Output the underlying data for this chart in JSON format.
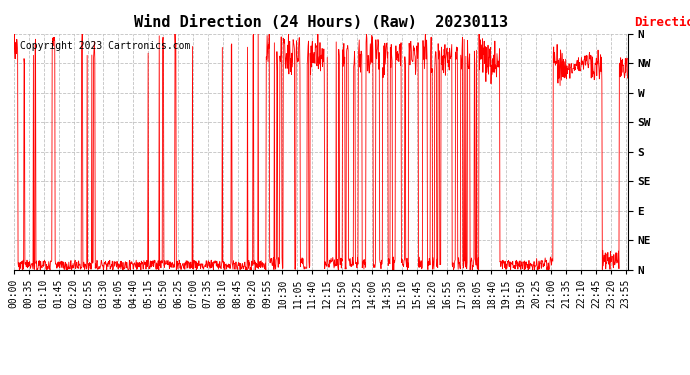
{
  "title": "Wind Direction (24 Hours) (Raw)  20230113",
  "copyright": "Copyright 2023 Cartronics.com",
  "legend_label": "Direction",
  "line_color": "red",
  "background_color": "white",
  "grid_color": "#bbbbbb",
  "ytick_labels_right": [
    "N",
    "NW",
    "W",
    "SW",
    "S",
    "SE",
    "E",
    "NE",
    "N"
  ],
  "ytick_values": [
    360,
    315,
    270,
    225,
    180,
    135,
    90,
    45,
    0
  ],
  "ylim": [
    0,
    360
  ],
  "xtick_labels": [
    "00:00",
    "00:35",
    "01:10",
    "01:45",
    "02:20",
    "02:55",
    "03:30",
    "04:05",
    "04:40",
    "05:15",
    "05:50",
    "06:25",
    "07:00",
    "07:35",
    "08:10",
    "08:45",
    "09:20",
    "09:55",
    "10:30",
    "11:05",
    "11:40",
    "12:15",
    "12:50",
    "13:25",
    "14:00",
    "14:35",
    "15:10",
    "15:45",
    "16:20",
    "16:55",
    "17:30",
    "18:05",
    "18:40",
    "19:15",
    "19:50",
    "20:25",
    "21:00",
    "21:35",
    "22:10",
    "22:45",
    "23:20",
    "23:55"
  ],
  "title_fontsize": 11,
  "axis_fontsize": 7,
  "copyright_fontsize": 7,
  "legend_fontsize": 9
}
